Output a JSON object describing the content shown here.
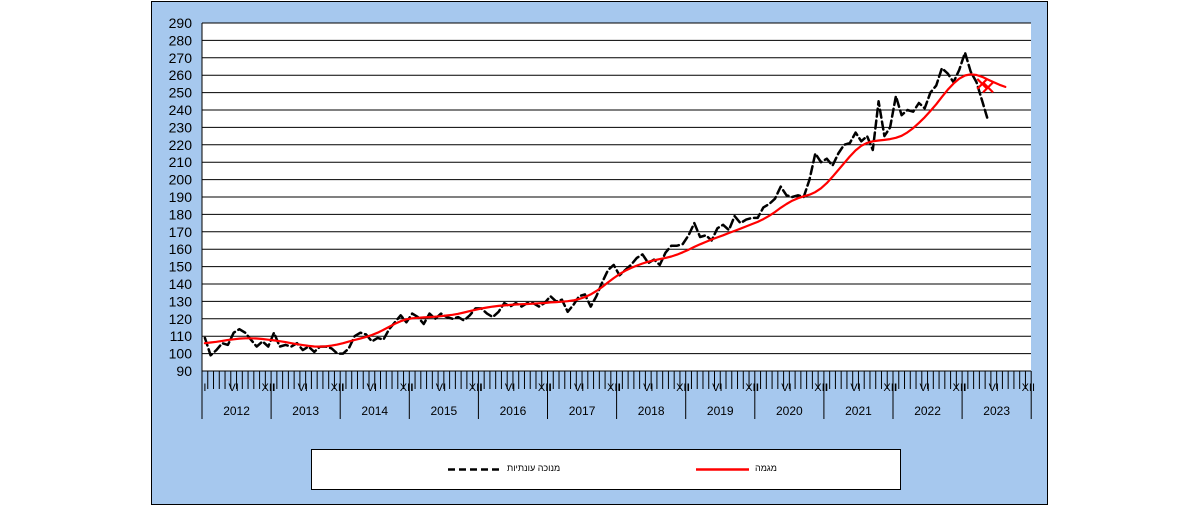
{
  "chart_data": {
    "type": "line",
    "title": "",
    "xlabel": "",
    "ylabel": "",
    "ylim": [
      90,
      290
    ],
    "yticks": [
      90,
      100,
      110,
      120,
      130,
      140,
      150,
      160,
      170,
      180,
      190,
      200,
      210,
      220,
      230,
      240,
      250,
      260,
      270,
      280,
      290
    ],
    "years": [
      "2012",
      "2013",
      "2014",
      "2015",
      "2016",
      "2017",
      "2018",
      "2019",
      "2020",
      "2021",
      "2022",
      "2023"
    ],
    "month_tick_labels": [
      "I",
      "VI",
      "XII"
    ],
    "grid": true,
    "legend_position": "bottom",
    "series": [
      {
        "name": "מנוכה עונתיות",
        "color": "#000000",
        "style": "dashed",
        "start": "2012-01",
        "values": [
          109,
          99,
          102,
          106,
          105,
          112,
          114,
          112,
          108,
          104,
          107,
          104,
          112,
          104,
          105,
          104,
          106,
          102,
          104,
          101,
          104,
          104,
          103,
          100,
          100,
          103,
          110,
          112,
          111,
          107,
          109,
          108,
          114,
          118,
          122,
          118,
          123,
          121,
          117,
          123,
          120,
          123,
          121,
          120,
          121,
          119,
          122,
          126,
          126,
          123,
          121,
          124,
          129,
          127,
          129,
          127,
          129,
          129,
          127,
          129,
          133,
          130,
          131,
          124,
          128,
          133,
          134,
          127,
          133,
          141,
          148,
          151,
          145,
          148,
          151,
          155,
          157,
          152,
          154,
          151,
          158,
          162,
          162,
          163,
          168,
          175,
          167,
          168,
          165,
          172,
          174,
          171,
          179,
          175,
          177,
          178,
          178,
          184,
          186,
          189,
          196,
          191,
          190,
          191,
          190,
          200,
          215,
          210,
          212,
          208,
          215,
          220,
          221,
          227,
          222,
          225,
          217,
          245,
          225,
          230,
          248,
          237,
          240,
          239,
          244,
          241,
          250,
          254,
          264,
          261,
          256,
          263,
          273,
          262,
          256,
          245,
          234
        ],
        "estimated_endpoints": [
          255,
          253
        ]
      },
      {
        "name": "מגמה",
        "color": "#ff0000",
        "style": "solid",
        "start": "2012-01",
        "values": [
          106,
          106.4,
          106.8,
          107.3,
          107.8,
          108.2,
          108.6,
          108.8,
          108.8,
          108.7,
          108.4,
          108,
          107.6,
          107.1,
          106.6,
          106,
          105.4,
          104.9,
          104.4,
          104.1,
          104,
          104.2,
          104.6,
          105.2,
          106,
          106.9,
          107.8,
          108.7,
          109.6,
          110.7,
          112,
          113.6,
          115.4,
          117.1,
          118.6,
          119.7,
          120.3,
          120.6,
          120.8,
          121,
          121.2,
          121.5,
          121.9,
          122.3,
          122.9,
          123.6,
          124.4,
          125.2,
          125.9,
          126.5,
          127,
          127.4,
          127.7,
          128,
          128.2,
          128.4,
          128.5,
          128.7,
          128.9,
          129.1,
          129.4,
          129.6,
          129.8,
          130.1,
          130.6,
          131.4,
          132.5,
          134,
          136,
          138.3,
          140.9,
          143.4,
          145.7,
          147.6,
          149.2,
          150.6,
          151.8,
          152.8,
          153.6,
          154.3,
          155,
          155.8,
          156.9,
          158.2,
          159.7,
          161.3,
          162.8,
          164.2,
          165.6,
          166.8,
          168,
          169.3,
          170.5,
          171.8,
          173.1,
          174.4,
          175.7,
          177.3,
          179.2,
          181.4,
          183.8,
          186,
          187.9,
          189.3,
          190.4,
          191.3,
          192.8,
          195,
          198,
          201.6,
          205.5,
          209.4,
          213.3,
          216.8,
          219.4,
          221.1,
          222,
          222.5,
          222.8,
          223.3,
          224,
          225.2,
          227.1,
          229.6,
          232.6,
          235.8,
          239.4,
          243.3,
          247.5,
          251.6,
          255.2,
          258,
          259.8,
          260.5,
          260.1,
          259,
          257.5,
          256,
          254.5,
          253.3
        ]
      }
    ]
  },
  "legend": {
    "items": [
      {
        "label": "מנוכה עונתיות",
        "color": "#000000"
      },
      {
        "label": "מגמה",
        "color": "#ff0000"
      }
    ]
  }
}
